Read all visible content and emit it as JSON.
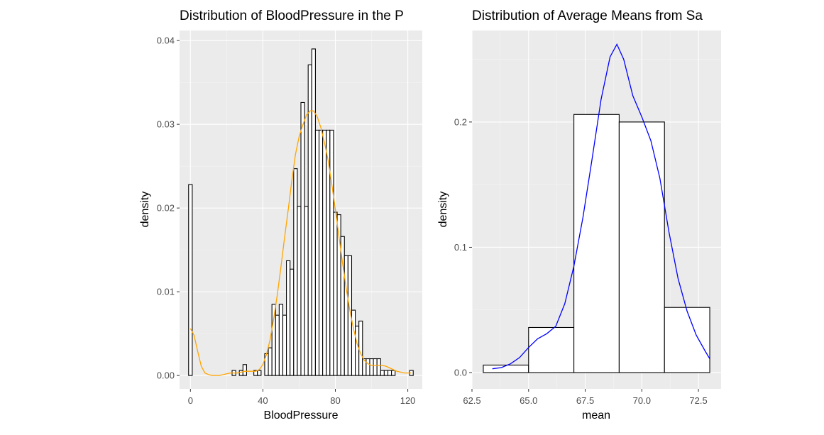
{
  "chart_data": [
    {
      "type": "bar",
      "title": "Distribution of BloodPressure in the P",
      "xlabel": "BloodPressure",
      "ylabel": "density",
      "xlim": [
        -6,
        128
      ],
      "ylim": [
        -0.0016,
        0.0412
      ],
      "xticks": [
        0,
        40,
        80,
        120
      ],
      "xtick_labels": [
        "0",
        "40",
        "80",
        "120"
      ],
      "yticks": [
        0,
        0.01,
        0.02,
        0.03,
        0.04
      ],
      "ytick_labels": [
        "0.00",
        "0.01",
        "0.02",
        "0.03",
        "0.04"
      ],
      "grid": true,
      "bin_width": 2,
      "histogram": {
        "bin_centers": [
          0,
          2,
          4,
          6,
          8,
          10,
          12,
          14,
          16,
          18,
          20,
          22,
          24,
          26,
          28,
          30,
          32,
          34,
          36,
          38,
          40,
          42,
          44,
          46,
          48,
          50,
          52,
          54,
          56,
          58,
          60,
          62,
          64,
          66,
          68,
          70,
          72,
          74,
          76,
          78,
          80,
          82,
          84,
          86,
          88,
          90,
          92,
          94,
          96,
          98,
          100,
          102,
          104,
          106,
          108,
          110,
          112,
          114,
          116,
          118,
          120,
          122
        ],
        "density": [
          0.0228,
          0,
          0,
          0,
          0,
          0,
          0,
          0,
          0,
          0,
          0,
          0,
          0.0006,
          0,
          0.0006,
          0.0013,
          0,
          0,
          0.0006,
          0.0006,
          0,
          0.0026,
          0.0033,
          0.0085,
          0.0072,
          0.0085,
          0.0072,
          0.0137,
          0.0127,
          0.0247,
          0.0202,
          0.0326,
          0.0202,
          0.0371,
          0.039,
          0.0293,
          0.0293,
          0.0293,
          0.0293,
          0.0293,
          0.0195,
          0.0192,
          0.0166,
          0.0143,
          0.0143,
          0.0078,
          0.0059,
          0.0065,
          0.002,
          0.002,
          0.002,
          0.002,
          0.002,
          0.0006,
          0.0006,
          0.0006,
          0.0006,
          0,
          0,
          0,
          0,
          0.0006
        ]
      },
      "density_curve": {
        "color": "#ffa500",
        "x": [
          0,
          2,
          4,
          6,
          8,
          10,
          12,
          14,
          16,
          18,
          20,
          22,
          24,
          26,
          28,
          30,
          32,
          34,
          36,
          38,
          40,
          42,
          44,
          46,
          48,
          50,
          52,
          54,
          56,
          58,
          60,
          62,
          64,
          66,
          68,
          70,
          72,
          74,
          76,
          78,
          80,
          82,
          84,
          86,
          88,
          90,
          92,
          94,
          96,
          98,
          100,
          102,
          104,
          106,
          108,
          110,
          112,
          114,
          116,
          118,
          120,
          122
        ],
        "y": [
          0.0056,
          0.0048,
          0.0029,
          0.0011,
          0.0003,
          0.0001,
          0,
          0,
          0,
          0.0001,
          0.0002,
          0.0003,
          0.0003,
          0.0003,
          0.0004,
          0.0005,
          0.0005,
          0.0005,
          0.0005,
          0.0007,
          0.0013,
          0.0025,
          0.0043,
          0.0068,
          0.0097,
          0.013,
          0.0165,
          0.0198,
          0.0233,
          0.0264,
          0.0285,
          0.0299,
          0.0311,
          0.0316,
          0.0316,
          0.0309,
          0.0296,
          0.0278,
          0.0257,
          0.0229,
          0.0198,
          0.0166,
          0.0134,
          0.0104,
          0.0078,
          0.0056,
          0.0038,
          0.0026,
          0.0018,
          0.0014,
          0.0012,
          0.0012,
          0.0012,
          0.0012,
          0.0011,
          0.0009,
          0.0007,
          0.0005,
          0.0004,
          0.0003,
          0.0003,
          0.0003
        ]
      }
    },
    {
      "type": "bar",
      "title": "Distribution of Average Means from Sa",
      "xlabel": "mean",
      "ylabel": "density",
      "xlim": [
        62.5,
        73.5
      ],
      "ylim": [
        -0.013,
        0.273
      ],
      "xticks": [
        62.5,
        65,
        67.5,
        70,
        72.5
      ],
      "xtick_labels": [
        "62.5",
        "65.0",
        "67.5",
        "70.0",
        "72.5"
      ],
      "yticks": [
        0,
        0.1,
        0.2
      ],
      "ytick_labels": [
        "0.0",
        "0.1",
        "0.2"
      ],
      "grid": true,
      "bin_width": 2,
      "histogram": {
        "bin_centers": [
          64,
          66,
          68,
          70,
          72
        ],
        "density": [
          0.006,
          0.036,
          0.206,
          0.2,
          0.052
        ]
      },
      "density_curve": {
        "color": "#0000ff",
        "x": [
          63.4,
          63.8,
          64.2,
          64.6,
          65.0,
          65.4,
          65.8,
          66.2,
          66.6,
          67.0,
          67.4,
          67.8,
          68.2,
          68.6,
          68.9,
          69.2,
          69.6,
          70.0,
          70.4,
          70.8,
          71.2,
          71.6,
          72.0,
          72.4,
          72.8,
          73.0
        ],
        "y": [
          0.003,
          0.004,
          0.007,
          0.012,
          0.02,
          0.027,
          0.031,
          0.037,
          0.055,
          0.085,
          0.124,
          0.17,
          0.218,
          0.252,
          0.262,
          0.25,
          0.221,
          0.204,
          0.185,
          0.155,
          0.112,
          0.075,
          0.049,
          0.03,
          0.017,
          0.011
        ]
      }
    }
  ]
}
